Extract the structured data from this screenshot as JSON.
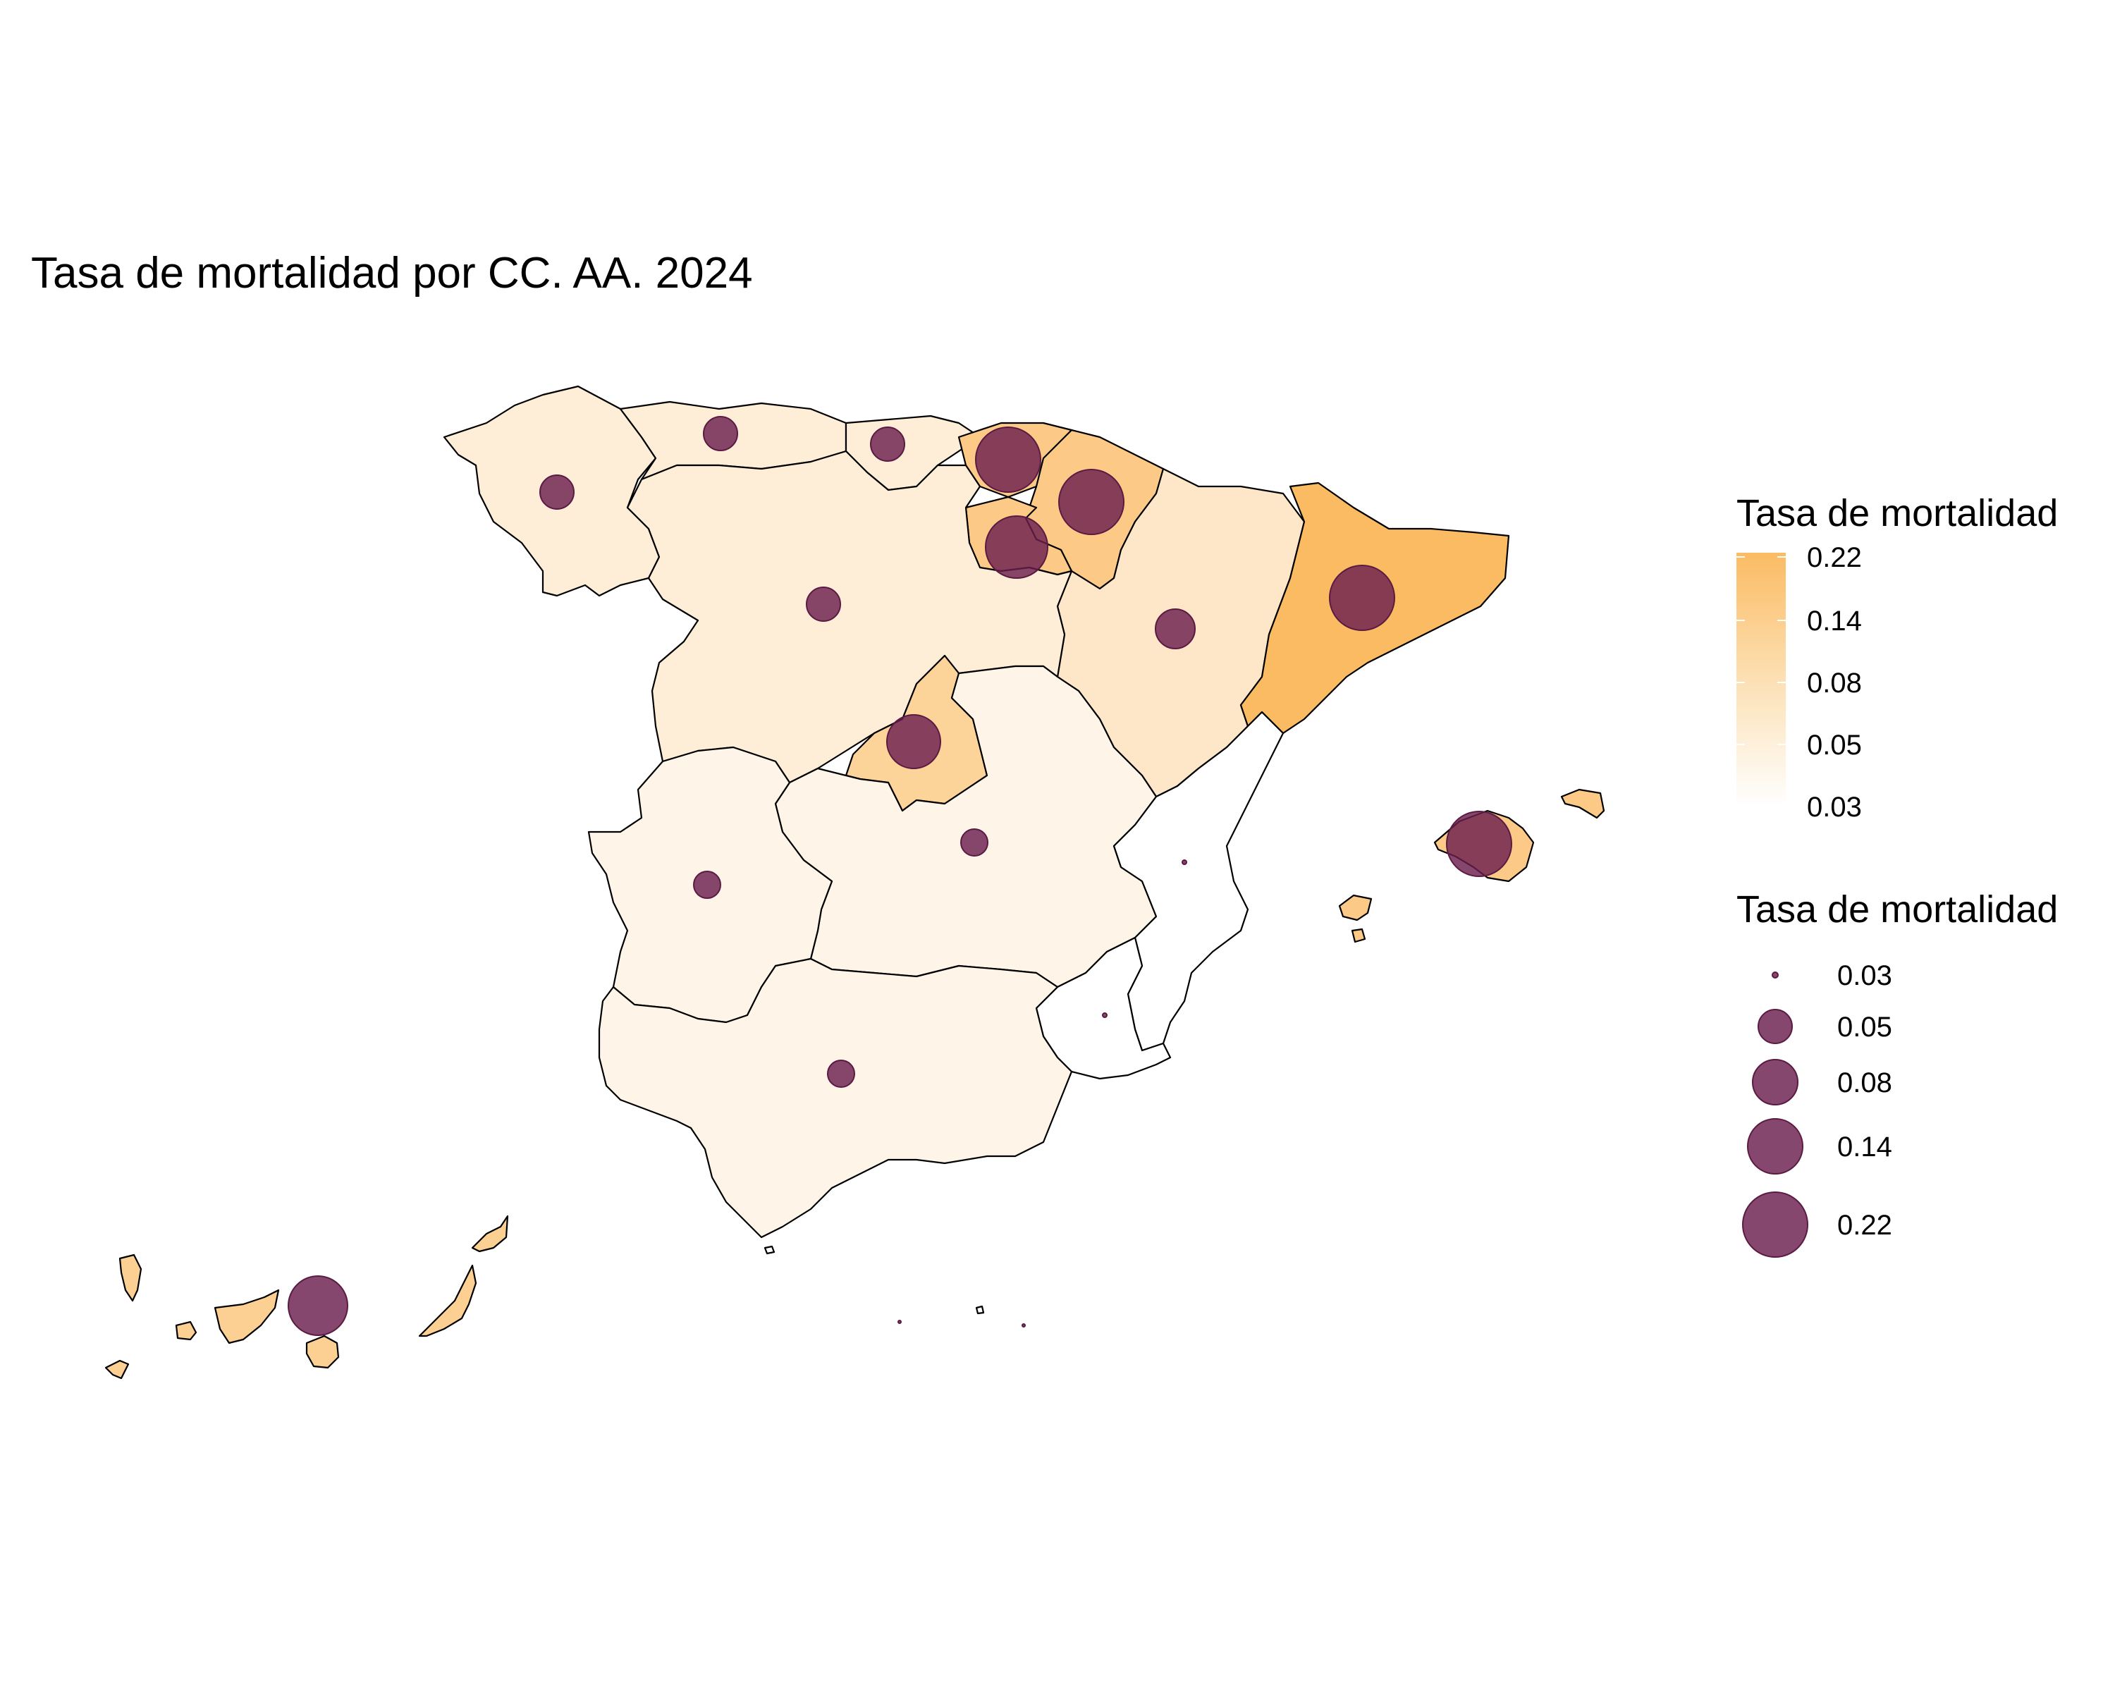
{
  "title": "Tasa de mortalidad por CC. AA. 2024",
  "colors": {
    "fill_low": "#ffffff",
    "fill_high": "#fbbb63",
    "bubble": "#6b1f4e",
    "border": "#000000"
  },
  "fill_legend": {
    "title": "Tasa de mortalidad",
    "breaks": [
      0.22,
      0.14,
      0.08,
      0.05,
      0.03
    ],
    "labels": [
      "0.22",
      "0.14",
      "0.08",
      "0.05",
      "0.03"
    ],
    "scale": "log"
  },
  "size_legend": {
    "title": "Tasa de mortalidad",
    "breaks": [
      0.03,
      0.05,
      0.08,
      0.14,
      0.22
    ],
    "labels": [
      "0.03",
      "0.05",
      "0.08",
      "0.14",
      "0.22"
    ]
  },
  "regions": [
    {
      "id": "galicia",
      "rate": 0.05
    },
    {
      "id": "asturias",
      "rate": 0.05
    },
    {
      "id": "cantabria",
      "rate": 0.05
    },
    {
      "id": "pais-vasco",
      "rate": 0.14
    },
    {
      "id": "navarra",
      "rate": 0.14
    },
    {
      "id": "la-rioja",
      "rate": 0.14
    },
    {
      "id": "aragon",
      "rate": 0.06
    },
    {
      "id": "cataluna",
      "rate": 0.22
    },
    {
      "id": "castilla-y-leon",
      "rate": 0.05
    },
    {
      "id": "madrid",
      "rate": 0.11
    },
    {
      "id": "castilla-la-mancha",
      "rate": 0.04
    },
    {
      "id": "extremadura",
      "rate": 0.04
    },
    {
      "id": "comunitat-valenciana",
      "rate": 0.03
    },
    {
      "id": "murcia",
      "rate": 0.03
    },
    {
      "id": "andalucia",
      "rate": 0.04
    },
    {
      "id": "illes-balears",
      "rate": 0.14
    },
    {
      "id": "canarias",
      "rate": 0.12
    },
    {
      "id": "ceuta",
      "rate": 0.03
    },
    {
      "id": "melilla",
      "rate": 0.03
    }
  ]
}
